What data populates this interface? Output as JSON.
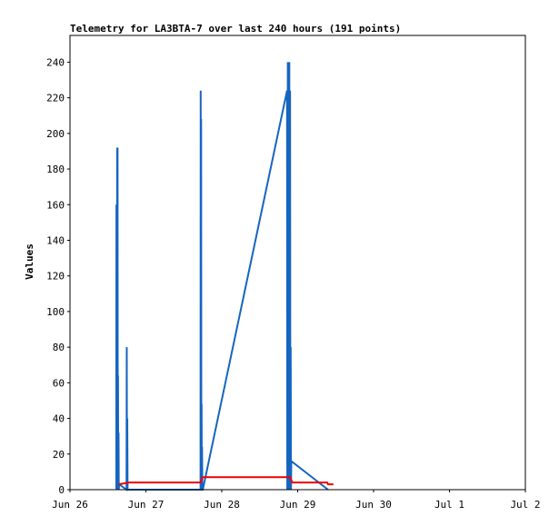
{
  "chart_data": {
    "type": "line",
    "title": "Telemetry for LA3BTA-7 over last 240 hours (191 points)",
    "xlabel": "",
    "ylabel": "Values",
    "x_ticks": [
      "Jun 26",
      "Jun 27",
      "Jun 28",
      "Jun 29",
      "Jun 30",
      "Jul 1",
      "Jul 2"
    ],
    "x_range_days": [
      0,
      6
    ],
    "ylim": [
      0,
      255
    ],
    "y_ticks": [
      0,
      20,
      40,
      60,
      80,
      100,
      120,
      140,
      160,
      180,
      200,
      220,
      240
    ],
    "grid": false,
    "legend": "none",
    "series": [
      {
        "color": "#1565c0",
        "points": [
          [
            0.61,
            0
          ],
          [
            0.612,
            160
          ],
          [
            0.615,
            0
          ],
          [
            0.622,
            192
          ],
          [
            0.625,
            0
          ],
          [
            0.627,
            192
          ],
          [
            0.63,
            0
          ],
          [
            0.633,
            64
          ],
          [
            0.636,
            0
          ],
          [
            0.64,
            32
          ],
          [
            0.643,
            0
          ],
          [
            0.648,
            3
          ],
          [
            0.745,
            0
          ],
          [
            0.748,
            80
          ],
          [
            0.751,
            0
          ],
          [
            0.755,
            40
          ],
          [
            0.759,
            0
          ],
          [
            1.72,
            0
          ],
          [
            1.722,
            224
          ],
          [
            1.725,
            0
          ],
          [
            1.728,
            208
          ],
          [
            1.731,
            0
          ],
          [
            1.734,
            48
          ],
          [
            1.737,
            0
          ],
          [
            1.74,
            24
          ],
          [
            1.744,
            0
          ],
          [
            1.75,
            0
          ],
          [
            2.86,
            224
          ],
          [
            2.863,
            0
          ],
          [
            2.87,
            240
          ],
          [
            2.874,
            0
          ],
          [
            2.89,
            240
          ],
          [
            2.895,
            0
          ],
          [
            2.9,
            224
          ],
          [
            2.904,
            0
          ],
          [
            2.908,
            80
          ],
          [
            2.912,
            0
          ],
          [
            2.916,
            16
          ],
          [
            3.4,
            0
          ]
        ]
      },
      {
        "color": "#ee0000",
        "points": [
          [
            0.64,
            3
          ],
          [
            0.78,
            4
          ],
          [
            1.72,
            4
          ],
          [
            1.75,
            7
          ],
          [
            2.9,
            7
          ],
          [
            2.93,
            4
          ],
          [
            3.39,
            4
          ],
          [
            3.4,
            3
          ],
          [
            3.47,
            3
          ]
        ]
      },
      {
        "color": "#000000",
        "points": [
          [
            0.61,
            0
          ],
          [
            3.47,
            0
          ]
        ]
      }
    ]
  }
}
